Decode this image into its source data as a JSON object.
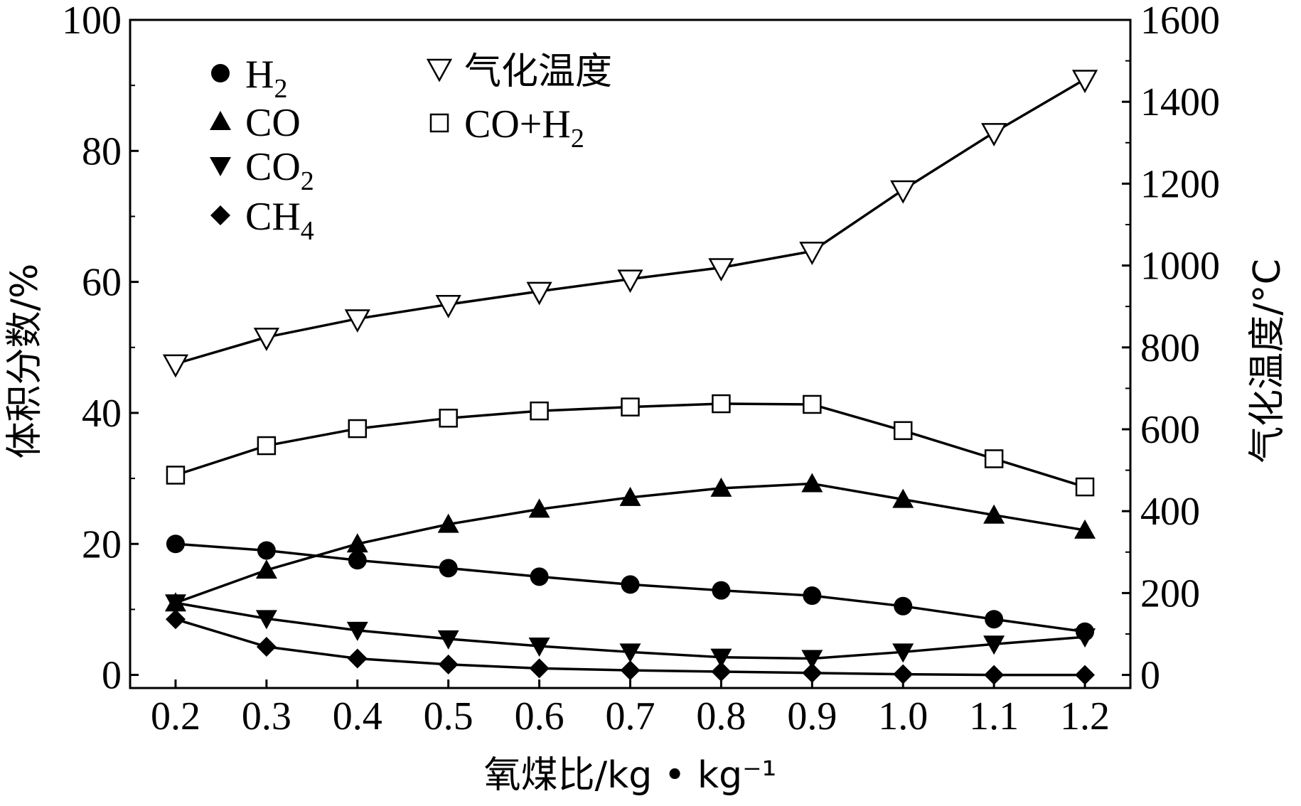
{
  "chart_data": {
    "type": "line",
    "xlabel": "氧煤比/kg • kg⁻¹",
    "ylabel": "体积分数/%",
    "y2label": "气化温度/°C",
    "x": [
      0.2,
      0.3,
      0.4,
      0.5,
      0.6,
      0.7,
      0.8,
      0.9,
      1.0,
      1.1,
      1.2
    ],
    "x_tick_labels": [
      "0.2",
      "0.3",
      "0.4",
      "0.5",
      "0.6",
      "0.7",
      "0.8",
      "0.9",
      "1.0",
      "1.1",
      "1.2"
    ],
    "xlim": [
      0.15,
      1.25
    ],
    "ylim": [
      -2,
      100
    ],
    "y_ticks": [
      0,
      20,
      40,
      60,
      80,
      100
    ],
    "y2lim": [
      -32,
      1600
    ],
    "y2_ticks": [
      0,
      200,
      400,
      600,
      800,
      1000,
      1200,
      1400,
      1600
    ],
    "grid": false,
    "legend_position": "top-left",
    "series": [
      {
        "name": "H2",
        "sub": "2",
        "marker": "circle",
        "axis": "left",
        "values": [
          20,
          19,
          17.5,
          16.3,
          15,
          13.8,
          12.9,
          12.1,
          10.5,
          8.5,
          6.6
        ]
      },
      {
        "name": "CO",
        "sub": "",
        "marker": "triangle-up",
        "axis": "left",
        "values": [
          11,
          16,
          20,
          23,
          25.3,
          27.1,
          28.5,
          29.2,
          26.8,
          24.4,
          22.1
        ]
      },
      {
        "name": "CO2",
        "sub": "2",
        "marker": "triangle-down",
        "axis": "left",
        "values": [
          11,
          8.6,
          6.8,
          5.5,
          4.4,
          3.5,
          2.7,
          2.5,
          3.5,
          4.7,
          5.8
        ]
      },
      {
        "name": "CH4",
        "sub": "4",
        "marker": "diamond",
        "axis": "left",
        "values": [
          8.5,
          4.3,
          2.5,
          1.6,
          1,
          0.7,
          0.5,
          0.3,
          0.1,
          0,
          0
        ]
      },
      {
        "name": "气化温度",
        "sub": "",
        "marker": "triangle-down-open",
        "axis": "right",
        "values": [
          760,
          825,
          870,
          905,
          937,
          967,
          995,
          1035,
          1185,
          1325,
          1455
        ]
      },
      {
        "name": "CO+H2",
        "sub": "2",
        "marker": "square-open",
        "axis": "left",
        "values": [
          30.5,
          35,
          37.6,
          39.2,
          40.3,
          40.9,
          41.4,
          41.3,
          37.3,
          33,
          28.7
        ]
      }
    ]
  }
}
